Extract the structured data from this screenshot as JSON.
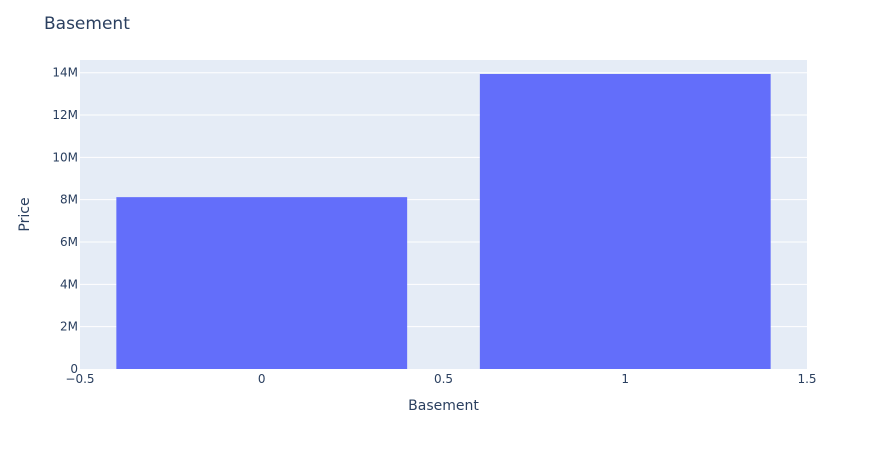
{
  "chart_data": {
    "type": "bar",
    "title": "Basement",
    "xlabel": "Basement",
    "ylabel": "Price",
    "x": [
      0,
      1
    ],
    "values": [
      8120000,
      13940000
    ],
    "bar_width": 0.8,
    "xlim": [
      -0.5,
      1.5
    ],
    "ylim": [
      0,
      14600000
    ],
    "x_ticks": [
      -0.5,
      0,
      0.5,
      1,
      1.5
    ],
    "x_tick_labels": [
      "−0.5",
      "0",
      "0.5",
      "1",
      "1.5"
    ],
    "y_ticks": [
      0,
      2000000,
      4000000,
      6000000,
      8000000,
      10000000,
      12000000,
      14000000
    ],
    "y_tick_labels": [
      "0",
      "2M",
      "4M",
      "6M",
      "8M",
      "10M",
      "12M",
      "14M"
    ],
    "grid": true,
    "colors": {
      "bar": "#636efa",
      "plot_bg": "#e5ecf6",
      "grid": "#ffffff",
      "text": "#2a3f5f"
    }
  }
}
